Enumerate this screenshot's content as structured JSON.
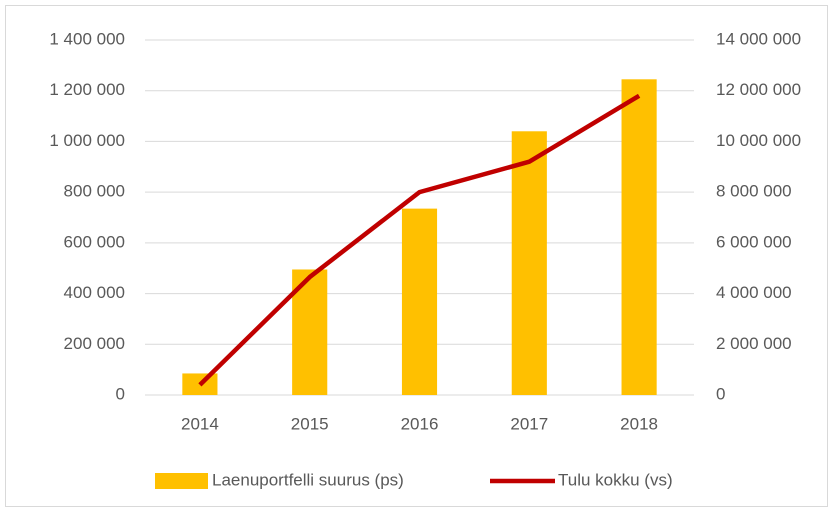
{
  "chart_data": {
    "type": "bar",
    "categories": [
      "2014",
      "2015",
      "2016",
      "2017",
      "2018"
    ],
    "series": [
      {
        "name": "Laenuportfelli suurus (ps)",
        "type": "bar",
        "color": "#FFC000",
        "values": [
          85000,
          495000,
          735000,
          1040000,
          1245000
        ]
      },
      {
        "name": "Tulu kokku (vs)",
        "type": "line",
        "axis": "y2",
        "color": "#C00000",
        "values": [
          400000,
          4650000,
          8000000,
          9200000,
          11800000
        ]
      }
    ],
    "ylim": [
      0,
      1400000
    ],
    "yticks": [
      0,
      {
        "value": 200000,
        "label": "200 000"
      },
      {
        "value": 400000,
        "label": "400 000"
      },
      {
        "value": 600000,
        "label": "600 000"
      },
      {
        "value": 800000,
        "label": "800 000"
      },
      {
        "value": 1000000,
        "label": "1 000 000"
      },
      {
        "value": 1200000,
        "label": "1 200 000"
      },
      {
        "value": 1400000,
        "label": "1 400 000"
      }
    ],
    "y2lim": [
      0,
      14000000
    ],
    "y2ticks": [
      0,
      {
        "value": 2000000,
        "label": "2 000 000"
      },
      {
        "value": 4000000,
        "label": "4 000 000"
      },
      {
        "value": 6000000,
        "label": "6 000 000"
      },
      {
        "value": 8000000,
        "label": "8 000 000"
      },
      {
        "value": 10000000,
        "label": "10 000 000"
      },
      {
        "value": 12000000,
        "label": "12 000 000"
      },
      {
        "value": 14000000,
        "label": "14 000 000"
      }
    ],
    "grid": true,
    "legend": "bottom"
  }
}
